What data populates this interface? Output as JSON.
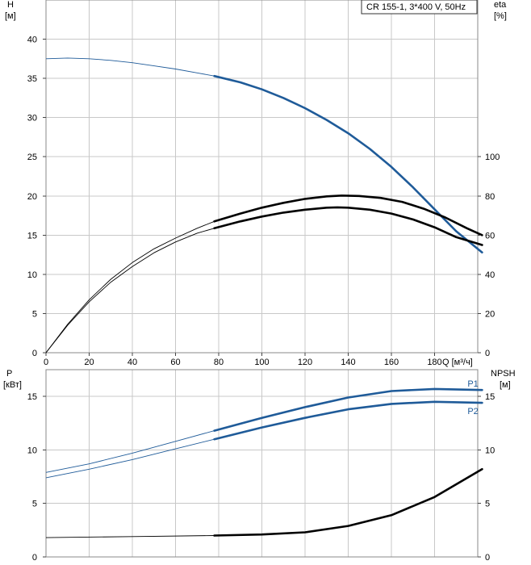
{
  "legend": "CR 155-1, 3*400 V, 50Hz",
  "colors": {
    "blue": "#1f5b99",
    "black": "#000000",
    "grid": "#c8c8c8"
  },
  "chart_data": [
    {
      "type": "line",
      "id": "top",
      "xlim": [
        0,
        200
      ],
      "ylim_left": [
        0,
        45
      ],
      "ylim_right": [
        0,
        180
      ],
      "grid": true,
      "x_ticks": [
        0,
        20,
        40,
        60,
        80,
        100,
        120,
        140,
        160,
        180
      ],
      "x_unit_label": "Q [м³/ч]",
      "left_ticks": [
        0,
        5,
        10,
        15,
        20,
        25,
        30,
        35,
        40
      ],
      "right_ticks": [
        0,
        20,
        40,
        60,
        80,
        100
      ],
      "left_label": "H",
      "left_unit": "[м]",
      "right_label": "eta",
      "right_unit": "[%]",
      "series": [
        {
          "axis": "left",
          "color": "blue",
          "op_from": 78,
          "points": [
            [
              0,
              37.5
            ],
            [
              10,
              37.6
            ],
            [
              20,
              37.5
            ],
            [
              30,
              37.3
            ],
            [
              40,
              37.0
            ],
            [
              50,
              36.6
            ],
            [
              60,
              36.2
            ],
            [
              70,
              35.7
            ],
            [
              78,
              35.3
            ],
            [
              90,
              34.5
            ],
            [
              100,
              33.6
            ],
            [
              110,
              32.5
            ],
            [
              120,
              31.2
            ],
            [
              130,
              29.7
            ],
            [
              140,
              28.0
            ],
            [
              150,
              26.0
            ],
            [
              160,
              23.7
            ],
            [
              170,
              21.1
            ],
            [
              180,
              18.3
            ],
            [
              190,
              15.5
            ],
            [
              202,
              12.8
            ]
          ]
        },
        {
          "axis": "right",
          "color": "black",
          "op_from": 78,
          "points": [
            [
              0,
              0
            ],
            [
              10,
              14
            ],
            [
              20,
              26
            ],
            [
              30,
              36
            ],
            [
              40,
              44
            ],
            [
              50,
              51
            ],
            [
              60,
              56.5
            ],
            [
              70,
              61
            ],
            [
              78,
              63.5
            ],
            [
              90,
              67
            ],
            [
              100,
              69.5
            ],
            [
              110,
              71.5
            ],
            [
              120,
              73
            ],
            [
              130,
              74
            ],
            [
              135,
              74.2
            ],
            [
              140,
              74
            ],
            [
              150,
              73
            ],
            [
              160,
              71
            ],
            [
              170,
              68
            ],
            [
              180,
              64
            ],
            [
              190,
              59
            ],
            [
              202,
              55
            ]
          ]
        },
        {
          "axis": "right",
          "color": "black",
          "op_from": 78,
          "points": [
            [
              0,
              0
            ],
            [
              10,
              14.5
            ],
            [
              20,
              27
            ],
            [
              30,
              37.5
            ],
            [
              40,
              46
            ],
            [
              50,
              53
            ],
            [
              60,
              58.5
            ],
            [
              70,
              63.5
            ],
            [
              78,
              67
            ],
            [
              90,
              71
            ],
            [
              100,
              74
            ],
            [
              110,
              76.5
            ],
            [
              120,
              78.5
            ],
            [
              130,
              79.8
            ],
            [
              137,
              80.2
            ],
            [
              145,
              80
            ],
            [
              155,
              79
            ],
            [
              165,
              77
            ],
            [
              175,
              73.5
            ],
            [
              185,
              69
            ],
            [
              195,
              63.5
            ],
            [
              202,
              60
            ]
          ]
        }
      ]
    },
    {
      "type": "line",
      "id": "bottom",
      "xlim": [
        0,
        200
      ],
      "ylim_left": [
        0,
        17.5
      ],
      "ylim_right": [
        0,
        17.5
      ],
      "grid": true,
      "left_ticks": [
        0,
        5,
        10,
        15
      ],
      "right_ticks": [
        0,
        5,
        10,
        15
      ],
      "left_label": "P",
      "left_unit": "[кВт]",
      "right_label": "NPSH",
      "right_unit": "[м]",
      "series": [
        {
          "name": "P1",
          "axis": "left",
          "color": "blue",
          "op_from": 78,
          "points": [
            [
              0,
              7.9
            ],
            [
              20,
              8.7
            ],
            [
              40,
              9.7
            ],
            [
              60,
              10.8
            ],
            [
              78,
              11.8
            ],
            [
              100,
              13.0
            ],
            [
              120,
              14.0
            ],
            [
              140,
              14.9
            ],
            [
              160,
              15.5
            ],
            [
              180,
              15.7
            ],
            [
              202,
              15.6
            ]
          ]
        },
        {
          "name": "P2",
          "axis": "left",
          "color": "blue",
          "op_from": 78,
          "points": [
            [
              0,
              7.4
            ],
            [
              20,
              8.2
            ],
            [
              40,
              9.1
            ],
            [
              60,
              10.1
            ],
            [
              78,
              11.0
            ],
            [
              100,
              12.1
            ],
            [
              120,
              13.0
            ],
            [
              140,
              13.8
            ],
            [
              160,
              14.3
            ],
            [
              180,
              14.5
            ],
            [
              202,
              14.4
            ]
          ]
        },
        {
          "axis": "right",
          "color": "black",
          "op_from": 78,
          "points": [
            [
              0,
              1.8
            ],
            [
              40,
              1.9
            ],
            [
              78,
              2.0
            ],
            [
              100,
              2.1
            ],
            [
              120,
              2.3
            ],
            [
              140,
              2.9
            ],
            [
              160,
              3.9
            ],
            [
              180,
              5.6
            ],
            [
              202,
              8.2
            ]
          ]
        }
      ]
    }
  ]
}
